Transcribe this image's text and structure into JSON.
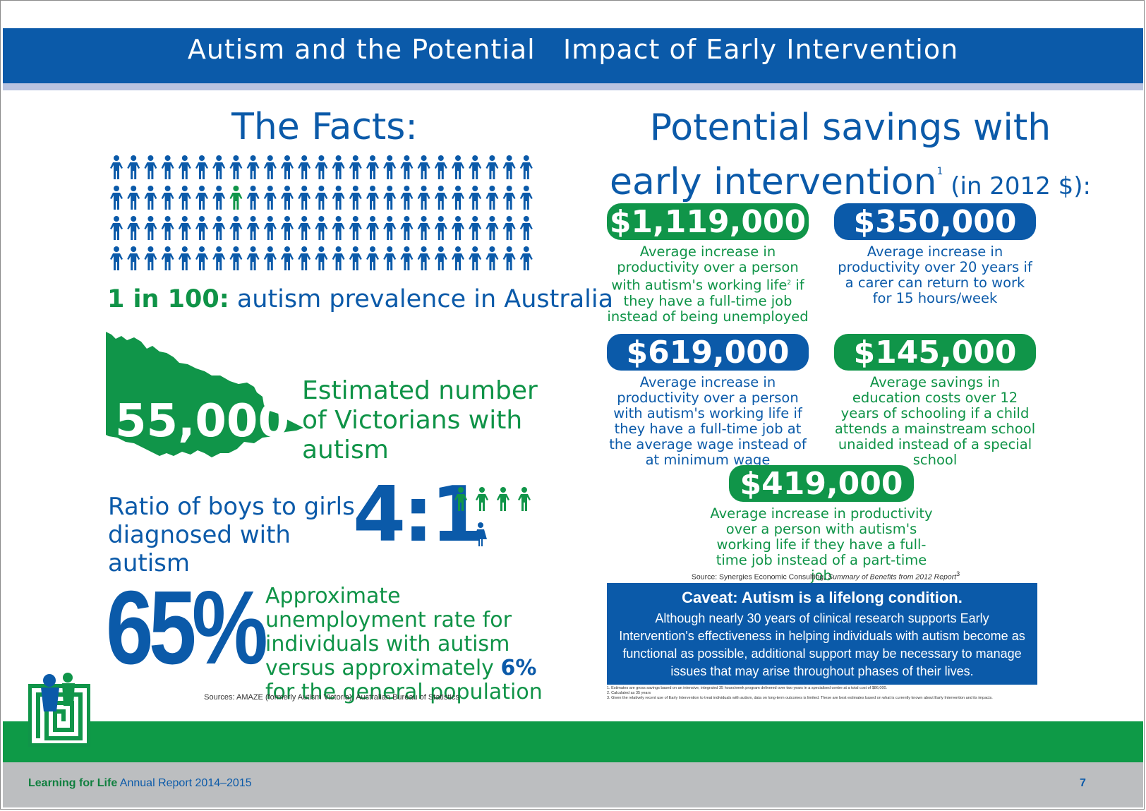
{
  "header": {
    "title": "Autism and the Potential   Impact of Early Intervention"
  },
  "facts": {
    "heading": "The Facts:",
    "prevalence_highlight": "1 in 100:",
    "prevalence_text": " autism prevalence in Australia",
    "victoria_count": "55,000",
    "victoria_caption": "Estimated number of Victorians with autism",
    "ratio_caption": "Ratio of boys to girls diagnosed with autism",
    "ratio_value": "4:1",
    "unemployment_value": "65%",
    "unemployment_caption_1": "Approximate unemployment rate for individuals with autism versus approximately ",
    "unemployment_caption_hl": "6%",
    "unemployment_caption_2": " for the general population",
    "sources": "Sources: AMAZE (formerly Autism Victoria), Australian Bureau of Statistics"
  },
  "savings": {
    "heading_line1": "Potential savings with",
    "heading_line2": "early intervention",
    "heading_sup": "1",
    "heading_small": " (in 2012 $):",
    "items": [
      {
        "amount": "$1,119,000",
        "desc_a": "Average increase in productivity over a person with autism's working life",
        "desc_sup": "2",
        "desc_b": " if they have a full-time job instead of being unemployed"
      },
      {
        "amount": "$350,000",
        "desc": "Average increase in productivity over 20 years if a carer can return to work for 15 hours/week"
      },
      {
        "amount": "$619,000",
        "desc": "Average increase in productivity over a person with autism's working life if they have a full-time job at the average wage instead of at minimum wage"
      },
      {
        "amount": "$145,000",
        "desc": "Average savings in education costs over 12 years of schooling if a child attends a mainstream school unaided instead of a special school"
      },
      {
        "amount": "$419,000",
        "desc": "Average increase in productivity over a person with autism's working life if they have a full-time job instead of a part-time job"
      }
    ],
    "source_prefix": "Source: Synergies Economic Consulting, ",
    "source_title": "Summary of Benefits from 2012 Report",
    "source_sup": "3"
  },
  "caveat": {
    "title": "Caveat: Autism is a lifelong condition.",
    "body": "Although nearly 30 years of clinical research supports Early Intervention's effectiveness in helping individuals with autism become as functional as possible, additional support may be necessary to manage issues that may arise throughout phases of their lives."
  },
  "footnotes": [
    "1. Estimates are gross savings based on an intensive, integrated 35 hours/week program delivered over two years in a specialised centre at a total cost of $86,000.",
    "2. Calculated as 35 years",
    "3. Given the relatively recent use of Early Intervention to treat individuals with autism, data on long-term outcomes is limited. These are best estimates based on what is currently known about Early Intervention and its impacts."
  ],
  "footer": {
    "brand": "Learning for Life",
    "report": " Annual Report 2014–2015",
    "page": "7"
  },
  "colors": {
    "blue": "#0b5aa9",
    "green": "#109549",
    "stripe": "#b9c3e0",
    "gray": "#bcbec0"
  },
  "icons": {
    "people": "person-icon",
    "map": "victoria-map",
    "logo": "maze-logo"
  }
}
